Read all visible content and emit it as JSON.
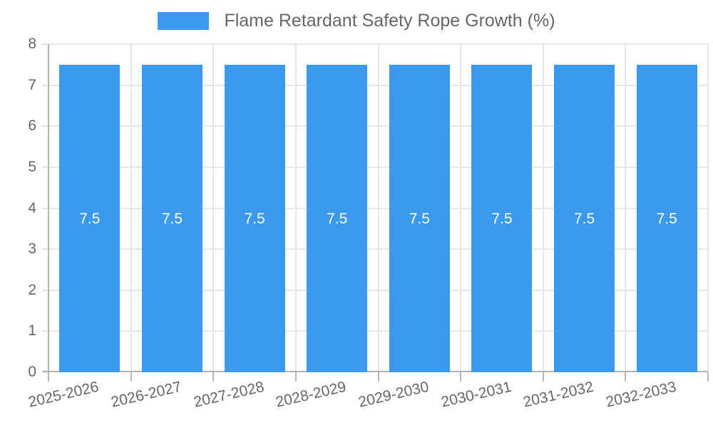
{
  "chart_data": {
    "type": "bar",
    "title": "Flame Retardant Safety Rope Growth (%)",
    "categories": [
      "2025-2026",
      "2026-2027",
      "2027-2028",
      "2028-2029",
      "2029-2030",
      "2030-2031",
      "2031-2032",
      "2032-2033"
    ],
    "series": [
      {
        "name": "Flame Retardant Safety Rope Growth (%)",
        "values": [
          7.5,
          7.5,
          7.5,
          7.5,
          7.5,
          7.5,
          7.5,
          7.5
        ]
      }
    ],
    "bar_value_labels": [
      "7.5",
      "7.5",
      "7.5",
      "7.5",
      "7.5",
      "7.5",
      "7.5",
      "7.5"
    ],
    "xlabel": "",
    "ylabel": "",
    "ylim": [
      0,
      8
    ],
    "yticks": [
      0,
      1,
      2,
      3,
      4,
      5,
      6,
      7,
      8
    ],
    "grid": true,
    "legend_position": "top-center",
    "colors": {
      "bar": "#3b99ee",
      "bar_label": "#ffffff",
      "axis_line": "#b3b3b3",
      "gridline": "#e6e6e6",
      "left_tick": "#e2e2e2",
      "bottom_tick": "#b7b7b7",
      "tick_text": "#666666",
      "legend_text": "#666666"
    }
  }
}
